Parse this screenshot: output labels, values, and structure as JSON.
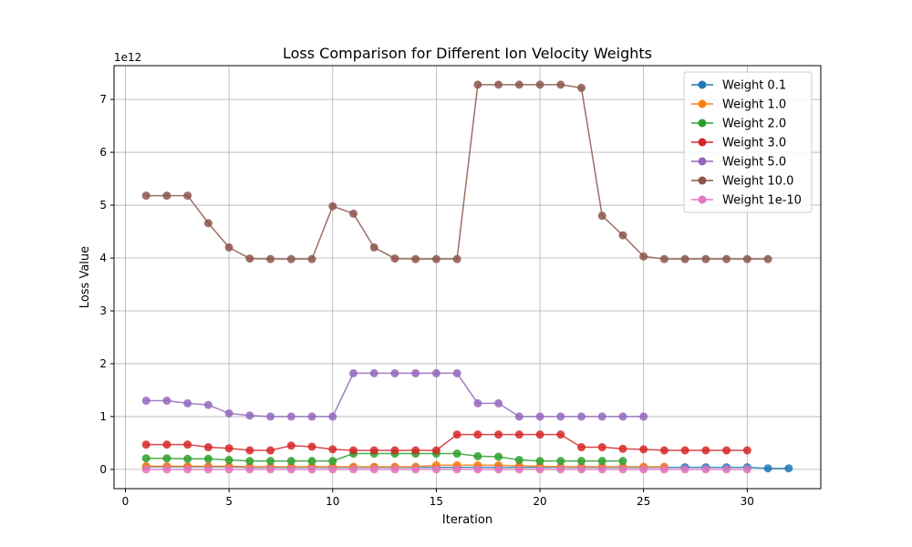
{
  "chart_data": {
    "type": "line",
    "title": "Loss Comparison for Different Ion Velocity Weights",
    "xlabel": "Iteration",
    "ylabel": "Loss Value",
    "y_scale_label": "1e12",
    "xlim": [
      -0.55,
      33.55
    ],
    "ylim": [
      -0.364,
      7.64
    ],
    "xticks": [
      0,
      5,
      10,
      15,
      20,
      25,
      30
    ],
    "yticks": [
      0,
      1,
      2,
      3,
      4,
      5,
      6,
      7
    ],
    "grid": true,
    "legend_position": "upper-right",
    "series": [
      {
        "name": "Weight 0.1",
        "color": "#1f77b4",
        "x": [
          1,
          2,
          3,
          4,
          5,
          6,
          7,
          8,
          9,
          10,
          11,
          12,
          13,
          14,
          15,
          16,
          17,
          18,
          19,
          20,
          21,
          22,
          23,
          24,
          25,
          26,
          27,
          28,
          29,
          30,
          31,
          32
        ],
        "y": [
          0.05,
          0.05,
          0.05,
          0.05,
          0.05,
          0.04,
          0.04,
          0.04,
          0.04,
          0.04,
          0.04,
          0.04,
          0.04,
          0.04,
          0.04,
          0.04,
          0.04,
          0.04,
          0.04,
          0.04,
          0.04,
          0.04,
          0.04,
          0.04,
          0.04,
          0.04,
          0.04,
          0.04,
          0.04,
          0.04,
          0.02,
          0.02
        ]
      },
      {
        "name": "Weight 1.0",
        "color": "#ff7f0e",
        "x": [
          1,
          2,
          3,
          4,
          5,
          6,
          7,
          8,
          9,
          10,
          11,
          12,
          13,
          14,
          15,
          16,
          17,
          18,
          19,
          20,
          21,
          22,
          23,
          24,
          25,
          26
        ],
        "y": [
          0.06,
          0.06,
          0.06,
          0.06,
          0.06,
          0.05,
          0.05,
          0.05,
          0.05,
          0.05,
          0.05,
          0.05,
          0.05,
          0.05,
          0.08,
          0.08,
          0.08,
          0.08,
          0.07,
          0.06,
          0.05,
          0.05,
          0.05,
          0.05,
          0.05,
          0.05
        ]
      },
      {
        "name": "Weight 2.0",
        "color": "#2ca02c",
        "x": [
          1,
          2,
          3,
          4,
          5,
          6,
          7,
          8,
          9,
          10,
          11,
          12,
          13,
          14,
          15,
          16,
          17,
          18,
          19,
          20,
          21,
          22,
          23,
          24
        ],
        "y": [
          0.21,
          0.21,
          0.2,
          0.2,
          0.18,
          0.16,
          0.16,
          0.16,
          0.16,
          0.16,
          0.3,
          0.3,
          0.3,
          0.3,
          0.3,
          0.3,
          0.25,
          0.24,
          0.18,
          0.16,
          0.16,
          0.16,
          0.16,
          0.16
        ]
      },
      {
        "name": "Weight 3.0",
        "color": "#d62728",
        "x": [
          1,
          2,
          3,
          4,
          5,
          6,
          7,
          8,
          9,
          10,
          11,
          12,
          13,
          14,
          15,
          16,
          17,
          18,
          19,
          20,
          21,
          22,
          23,
          24,
          25,
          26,
          27,
          28,
          29,
          30
        ],
        "y": [
          0.47,
          0.47,
          0.47,
          0.42,
          0.4,
          0.36,
          0.36,
          0.45,
          0.43,
          0.38,
          0.36,
          0.36,
          0.36,
          0.36,
          0.36,
          0.66,
          0.66,
          0.66,
          0.66,
          0.66,
          0.66,
          0.42,
          0.42,
          0.39,
          0.38,
          0.36,
          0.36,
          0.36,
          0.36,
          0.36
        ]
      },
      {
        "name": "Weight 5.0",
        "color": "#9467bd",
        "x": [
          1,
          2,
          3,
          4,
          5,
          6,
          7,
          8,
          9,
          10,
          11,
          12,
          13,
          14,
          15,
          16,
          17,
          18,
          19,
          20,
          21,
          22,
          23,
          24,
          25
        ],
        "y": [
          1.3,
          1.3,
          1.25,
          1.22,
          1.06,
          1.02,
          1.0,
          1.0,
          1.0,
          1.0,
          1.82,
          1.82,
          1.82,
          1.82,
          1.82,
          1.82,
          1.25,
          1.25,
          1.0,
          1.0,
          1.0,
          1.0,
          1.0,
          1.0,
          1.0
        ]
      },
      {
        "name": "Weight 10.0",
        "color": "#8c564b",
        "x": [
          1,
          2,
          3,
          4,
          5,
          6,
          7,
          8,
          9,
          10,
          11,
          12,
          13,
          14,
          15,
          16,
          17,
          18,
          19,
          20,
          21,
          22,
          23,
          24,
          25,
          26,
          27,
          28,
          29,
          30,
          31
        ],
        "y": [
          5.18,
          5.18,
          5.18,
          4.66,
          4.2,
          3.99,
          3.98,
          3.98,
          3.98,
          4.98,
          4.84,
          4.2,
          3.99,
          3.98,
          3.98,
          3.98,
          7.28,
          7.28,
          7.28,
          7.28,
          7.28,
          7.22,
          4.8,
          4.43,
          4.03,
          3.98,
          3.98,
          3.98,
          3.98,
          3.98,
          3.98
        ]
      },
      {
        "name": "Weight 1e-10",
        "color": "#e377c2",
        "x": [
          1,
          2,
          3,
          4,
          5,
          6,
          7,
          8,
          9,
          10,
          11,
          12,
          13,
          14,
          15,
          16,
          17,
          18,
          19,
          20,
          21,
          22,
          23,
          24,
          25,
          26,
          27,
          28,
          29,
          30
        ],
        "y": [
          0.0,
          0.0,
          0.0,
          0.0,
          0.0,
          0.0,
          0.0,
          0.0,
          0.0,
          0.0,
          0.0,
          0.0,
          0.0,
          0.0,
          0.0,
          0.0,
          0.0,
          0.0,
          0.0,
          0.0,
          0.0,
          0.0,
          0.0,
          0.0,
          0.0,
          0.0,
          0.0,
          0.0,
          0.0,
          0.0
        ]
      }
    ]
  }
}
